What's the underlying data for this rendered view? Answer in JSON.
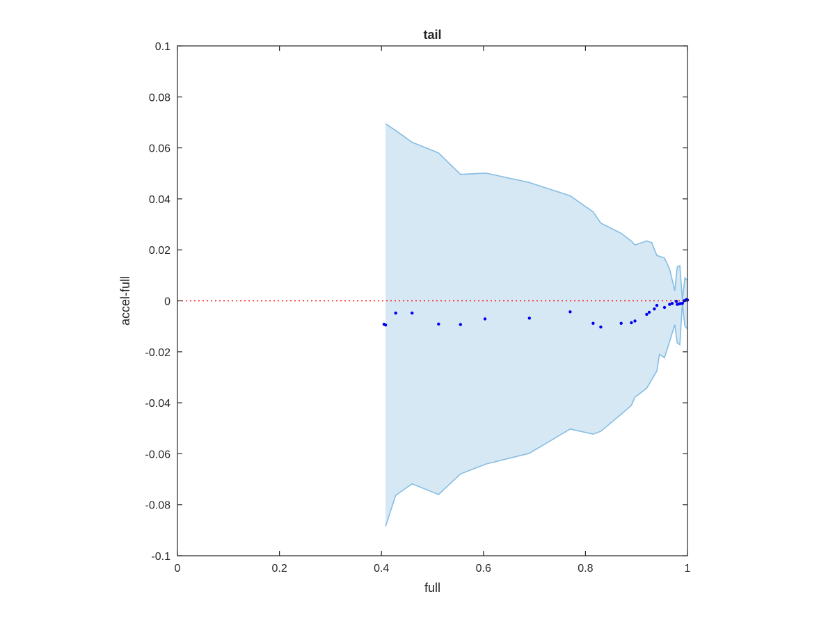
{
  "chart_data": {
    "type": "scatter",
    "title": "tail",
    "xlabel": "full",
    "ylabel": "accel-full",
    "xlim": [
      0,
      1
    ],
    "ylim": [
      -0.1,
      0.1
    ],
    "xticks": [
      0,
      0.2,
      0.4,
      0.6,
      0.8,
      1
    ],
    "xtick_labels": [
      "0",
      "0.2",
      "0.4",
      "0.6",
      "0.8",
      "1"
    ],
    "yticks": [
      0.1,
      0.08,
      0.06,
      0.04,
      0.02,
      0,
      -0.02,
      -0.04,
      -0.06,
      -0.08,
      -0.1
    ],
    "ytick_labels": [
      "0.1",
      "0.08",
      "0.06",
      "0.04",
      "0.02",
      "0",
      "-0.02",
      "-0.04",
      "-0.06",
      "-0.08",
      "-0.1"
    ],
    "grid": false,
    "reference_line": {
      "y": 0,
      "color": "#ff0000",
      "style": "dotted"
    },
    "band": {
      "fill_color": "#d6e8f4",
      "edge_color": "#86bde2",
      "upper": [
        [
          0.408,
          0.0695
        ],
        [
          0.428,
          0.0668
        ],
        [
          0.46,
          0.0622
        ],
        [
          0.512,
          0.058
        ],
        [
          0.555,
          0.0496
        ],
        [
          0.605,
          0.0501
        ],
        [
          0.69,
          0.0464
        ],
        [
          0.77,
          0.0412
        ],
        [
          0.815,
          0.0349
        ],
        [
          0.83,
          0.0305
        ],
        [
          0.87,
          0.0265
        ],
        [
          0.89,
          0.0234
        ],
        [
          0.897,
          0.0219
        ],
        [
          0.92,
          0.0235
        ],
        [
          0.93,
          0.0228
        ],
        [
          0.94,
          0.0178
        ],
        [
          0.955,
          0.0168
        ],
        [
          0.965,
          0.0125
        ],
        [
          0.975,
          0.004
        ],
        [
          0.98,
          0.0133
        ],
        [
          0.985,
          0.0138
        ],
        [
          0.99,
          0.0005
        ],
        [
          0.995,
          0.009
        ],
        [
          1.0,
          0.008
        ]
      ],
      "lower": [
        [
          0.408,
          -0.0885
        ],
        [
          0.428,
          -0.0763
        ],
        [
          0.46,
          -0.0718
        ],
        [
          0.512,
          -0.076
        ],
        [
          0.555,
          -0.0679
        ],
        [
          0.605,
          -0.064
        ],
        [
          0.69,
          -0.0598
        ],
        [
          0.77,
          -0.0503
        ],
        [
          0.815,
          -0.0523
        ],
        [
          0.83,
          -0.0512
        ],
        [
          0.87,
          -0.0445
        ],
        [
          0.89,
          -0.041
        ],
        [
          0.897,
          -0.0378
        ],
        [
          0.92,
          -0.0343
        ],
        [
          0.94,
          -0.0275
        ],
        [
          0.945,
          -0.021
        ],
        [
          0.955,
          -0.0223
        ],
        [
          0.965,
          -0.016
        ],
        [
          0.975,
          -0.0093
        ],
        [
          0.98,
          -0.0165
        ],
        [
          0.985,
          -0.0172
        ],
        [
          0.99,
          -0.001
        ],
        [
          0.995,
          -0.01
        ],
        [
          1.0,
          -0.011
        ]
      ]
    },
    "points": {
      "color": "#0000ee",
      "x": [
        0.405,
        0.408,
        0.428,
        0.46,
        0.512,
        0.555,
        0.603,
        0.69,
        0.77,
        0.815,
        0.83,
        0.87,
        0.89,
        0.897,
        0.92,
        0.925,
        0.935,
        0.94,
        0.955,
        0.965,
        0.97,
        0.978,
        0.98,
        0.983,
        0.986,
        0.99,
        0.993,
        0.996,
        0.998,
        1.0
      ],
      "y": [
        -0.0092,
        -0.0095,
        -0.0048,
        -0.0048,
        -0.0091,
        -0.0093,
        -0.0071,
        -0.0068,
        -0.0043,
        -0.0088,
        -0.0103,
        -0.0088,
        -0.0086,
        -0.0079,
        -0.0053,
        -0.0045,
        -0.0032,
        -0.0018,
        -0.0026,
        -0.0014,
        -0.001,
        -0.0002,
        -0.0014,
        -0.0012,
        -0.0011,
        -0.001,
        0.0,
        0.0002,
        0.0005,
        0.0003
      ]
    }
  }
}
